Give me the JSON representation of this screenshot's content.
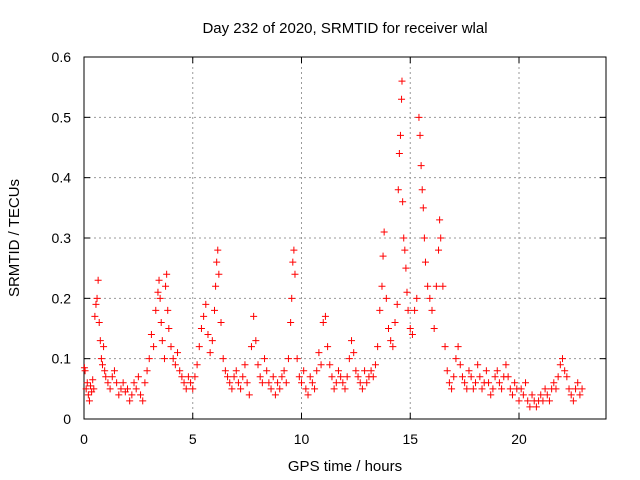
{
  "chart_data": {
    "type": "scatter",
    "title": "Day 232 of 2020, SRMTID for receiver wlal",
    "xlabel": "GPS time / hours",
    "ylabel": "SRMTID / TECUs",
    "xlim": [
      0,
      24
    ],
    "ylim": [
      0,
      0.6
    ],
    "xticks": [
      0,
      5,
      10,
      15,
      20
    ],
    "yticks": [
      0,
      0.1,
      0.2,
      0.3,
      0.4,
      0.5,
      0.6
    ],
    "xtick_labels": [
      "0",
      "5",
      "10",
      "15",
      "20"
    ],
    "ytick_labels": [
      "0",
      "0.1",
      "0.2",
      "0.3",
      "0.4",
      "0.5",
      "0.6"
    ],
    "grid": true,
    "marker": "+",
    "color": "#ff0000",
    "series": [
      {
        "name": "SRMTID",
        "points": [
          [
            0.02,
            0.085
          ],
          [
            0.05,
            0.08
          ],
          [
            0.1,
            0.05
          ],
          [
            0.15,
            0.06
          ],
          [
            0.2,
            0.04
          ],
          [
            0.25,
            0.03
          ],
          [
            0.3,
            0.055
          ],
          [
            0.35,
            0.045
          ],
          [
            0.4,
            0.065
          ],
          [
            0.45,
            0.05
          ],
          [
            0.5,
            0.17
          ],
          [
            0.55,
            0.19
          ],
          [
            0.6,
            0.2
          ],
          [
            0.65,
            0.23
          ],
          [
            0.7,
            0.16
          ],
          [
            0.75,
            0.13
          ],
          [
            0.8,
            0.1
          ],
          [
            0.85,
            0.09
          ],
          [
            0.9,
            0.12
          ],
          [
            0.95,
            0.08
          ],
          [
            1.0,
            0.07
          ],
          [
            1.1,
            0.06
          ],
          [
            1.2,
            0.05
          ],
          [
            1.3,
            0.07
          ],
          [
            1.4,
            0.08
          ],
          [
            1.5,
            0.06
          ],
          [
            1.6,
            0.04
          ],
          [
            1.7,
            0.05
          ],
          [
            1.8,
            0.06
          ],
          [
            1.9,
            0.045
          ],
          [
            2.0,
            0.05
          ],
          [
            2.1,
            0.03
          ],
          [
            2.2,
            0.04
          ],
          [
            2.3,
            0.06
          ],
          [
            2.4,
            0.05
          ],
          [
            2.5,
            0.07
          ],
          [
            2.6,
            0.04
          ],
          [
            2.7,
            0.03
          ],
          [
            2.8,
            0.06
          ],
          [
            2.9,
            0.08
          ],
          [
            3.0,
            0.1
          ],
          [
            3.1,
            0.14
          ],
          [
            3.2,
            0.12
          ],
          [
            3.3,
            0.18
          ],
          [
            3.4,
            0.21
          ],
          [
            3.45,
            0.23
          ],
          [
            3.5,
            0.2
          ],
          [
            3.55,
            0.16
          ],
          [
            3.6,
            0.13
          ],
          [
            3.7,
            0.1
          ],
          [
            3.75,
            0.22
          ],
          [
            3.8,
            0.24
          ],
          [
            3.85,
            0.18
          ],
          [
            3.9,
            0.15
          ],
          [
            4.0,
            0.12
          ],
          [
            4.1,
            0.1
          ],
          [
            4.2,
            0.09
          ],
          [
            4.3,
            0.11
          ],
          [
            4.4,
            0.08
          ],
          [
            4.5,
            0.07
          ],
          [
            4.6,
            0.06
          ],
          [
            4.7,
            0.05
          ],
          [
            4.8,
            0.07
          ],
          [
            4.9,
            0.06
          ],
          [
            5.0,
            0.05
          ],
          [
            5.1,
            0.07
          ],
          [
            5.2,
            0.09
          ],
          [
            5.3,
            0.12
          ],
          [
            5.4,
            0.15
          ],
          [
            5.5,
            0.17
          ],
          [
            5.6,
            0.19
          ],
          [
            5.7,
            0.14
          ],
          [
            5.8,
            0.11
          ],
          [
            5.9,
            0.13
          ],
          [
            6.0,
            0.18
          ],
          [
            6.05,
            0.22
          ],
          [
            6.1,
            0.26
          ],
          [
            6.15,
            0.28
          ],
          [
            6.2,
            0.24
          ],
          [
            6.3,
            0.16
          ],
          [
            6.4,
            0.1
          ],
          [
            6.5,
            0.08
          ],
          [
            6.6,
            0.07
          ],
          [
            6.7,
            0.06
          ],
          [
            6.8,
            0.05
          ],
          [
            6.9,
            0.07
          ],
          [
            7.0,
            0.08
          ],
          [
            7.1,
            0.06
          ],
          [
            7.2,
            0.05
          ],
          [
            7.3,
            0.07
          ],
          [
            7.4,
            0.09
          ],
          [
            7.5,
            0.06
          ],
          [
            7.6,
            0.04
          ],
          [
            7.7,
            0.12
          ],
          [
            7.8,
            0.17
          ],
          [
            7.9,
            0.13
          ],
          [
            8.0,
            0.09
          ],
          [
            8.1,
            0.07
          ],
          [
            8.2,
            0.06
          ],
          [
            8.3,
            0.1
          ],
          [
            8.4,
            0.08
          ],
          [
            8.5,
            0.06
          ],
          [
            8.6,
            0.05
          ],
          [
            8.7,
            0.07
          ],
          [
            8.8,
            0.04
          ],
          [
            8.9,
            0.06
          ],
          [
            9.0,
            0.05
          ],
          [
            9.1,
            0.07
          ],
          [
            9.2,
            0.08
          ],
          [
            9.3,
            0.06
          ],
          [
            9.4,
            0.1
          ],
          [
            9.5,
            0.16
          ],
          [
            9.55,
            0.2
          ],
          [
            9.6,
            0.26
          ],
          [
            9.65,
            0.28
          ],
          [
            9.7,
            0.24
          ],
          [
            9.8,
            0.1
          ],
          [
            9.9,
            0.07
          ],
          [
            10.0,
            0.06
          ],
          [
            10.1,
            0.08
          ],
          [
            10.2,
            0.05
          ],
          [
            10.3,
            0.04
          ],
          [
            10.4,
            0.07
          ],
          [
            10.5,
            0.06
          ],
          [
            10.6,
            0.05
          ],
          [
            10.7,
            0.08
          ],
          [
            10.8,
            0.11
          ],
          [
            10.9,
            0.09
          ],
          [
            11.0,
            0.16
          ],
          [
            11.1,
            0.17
          ],
          [
            11.2,
            0.12
          ],
          [
            11.3,
            0.09
          ],
          [
            11.4,
            0.07
          ],
          [
            11.5,
            0.05
          ],
          [
            11.6,
            0.06
          ],
          [
            11.7,
            0.08
          ],
          [
            11.8,
            0.07
          ],
          [
            11.9,
            0.06
          ],
          [
            12.0,
            0.05
          ],
          [
            12.1,
            0.07
          ],
          [
            12.2,
            0.1
          ],
          [
            12.3,
            0.13
          ],
          [
            12.4,
            0.11
          ],
          [
            12.5,
            0.08
          ],
          [
            12.6,
            0.07
          ],
          [
            12.7,
            0.06
          ],
          [
            12.8,
            0.05
          ],
          [
            12.9,
            0.08
          ],
          [
            13.0,
            0.06
          ],
          [
            13.1,
            0.07
          ],
          [
            13.2,
            0.08
          ],
          [
            13.3,
            0.07
          ],
          [
            13.4,
            0.09
          ],
          [
            13.5,
            0.12
          ],
          [
            13.6,
            0.18
          ],
          [
            13.7,
            0.22
          ],
          [
            13.75,
            0.27
          ],
          [
            13.8,
            0.31
          ],
          [
            13.9,
            0.2
          ],
          [
            14.0,
            0.15
          ],
          [
            14.1,
            0.13
          ],
          [
            14.2,
            0.12
          ],
          [
            14.3,
            0.16
          ],
          [
            14.4,
            0.19
          ],
          [
            14.45,
            0.38
          ],
          [
            14.5,
            0.44
          ],
          [
            14.55,
            0.47
          ],
          [
            14.6,
            0.53
          ],
          [
            14.62,
            0.56
          ],
          [
            14.65,
            0.36
          ],
          [
            14.7,
            0.3
          ],
          [
            14.75,
            0.28
          ],
          [
            14.8,
            0.25
          ],
          [
            14.85,
            0.21
          ],
          [
            14.9,
            0.18
          ],
          [
            15.0,
            0.15
          ],
          [
            15.1,
            0.14
          ],
          [
            15.2,
            0.18
          ],
          [
            15.3,
            0.2
          ],
          [
            15.4,
            0.5
          ],
          [
            15.45,
            0.47
          ],
          [
            15.5,
            0.42
          ],
          [
            15.55,
            0.38
          ],
          [
            15.6,
            0.35
          ],
          [
            15.65,
            0.3
          ],
          [
            15.7,
            0.26
          ],
          [
            15.8,
            0.22
          ],
          [
            15.9,
            0.2
          ],
          [
            16.0,
            0.18
          ],
          [
            16.1,
            0.15
          ],
          [
            16.2,
            0.22
          ],
          [
            16.3,
            0.28
          ],
          [
            16.35,
            0.33
          ],
          [
            16.4,
            0.3
          ],
          [
            16.5,
            0.22
          ],
          [
            16.6,
            0.12
          ],
          [
            16.7,
            0.08
          ],
          [
            16.8,
            0.06
          ],
          [
            16.9,
            0.05
          ],
          [
            17.0,
            0.07
          ],
          [
            17.1,
            0.1
          ],
          [
            17.2,
            0.12
          ],
          [
            17.3,
            0.09
          ],
          [
            17.4,
            0.07
          ],
          [
            17.5,
            0.06
          ],
          [
            17.6,
            0.05
          ],
          [
            17.7,
            0.08
          ],
          [
            17.8,
            0.07
          ],
          [
            17.9,
            0.05
          ],
          [
            18.0,
            0.06
          ],
          [
            18.1,
            0.09
          ],
          [
            18.2,
            0.07
          ],
          [
            18.3,
            0.05
          ],
          [
            18.4,
            0.06
          ],
          [
            18.5,
            0.08
          ],
          [
            18.6,
            0.06
          ],
          [
            18.7,
            0.04
          ],
          [
            18.8,
            0.05
          ],
          [
            18.9,
            0.07
          ],
          [
            19.0,
            0.08
          ],
          [
            19.1,
            0.06
          ],
          [
            19.2,
            0.05
          ],
          [
            19.3,
            0.07
          ],
          [
            19.4,
            0.09
          ],
          [
            19.5,
            0.07
          ],
          [
            19.6,
            0.05
          ],
          [
            19.7,
            0.04
          ],
          [
            19.8,
            0.06
          ],
          [
            19.9,
            0.05
          ],
          [
            20.0,
            0.03
          ],
          [
            20.1,
            0.05
          ],
          [
            20.2,
            0.04
          ],
          [
            20.3,
            0.06
          ],
          [
            20.4,
            0.03
          ],
          [
            20.5,
            0.02
          ],
          [
            20.6,
            0.04
          ],
          [
            20.7,
            0.03
          ],
          [
            20.8,
            0.02
          ],
          [
            20.9,
            0.03
          ],
          [
            21.0,
            0.04
          ],
          [
            21.1,
            0.03
          ],
          [
            21.2,
            0.05
          ],
          [
            21.3,
            0.04
          ],
          [
            21.4,
            0.03
          ],
          [
            21.5,
            0.05
          ],
          [
            21.6,
            0.06
          ],
          [
            21.7,
            0.05
          ],
          [
            21.8,
            0.07
          ],
          [
            21.9,
            0.09
          ],
          [
            22.0,
            0.1
          ],
          [
            22.1,
            0.08
          ],
          [
            22.2,
            0.07
          ],
          [
            22.3,
            0.05
          ],
          [
            22.4,
            0.04
          ],
          [
            22.5,
            0.03
          ],
          [
            22.6,
            0.05
          ],
          [
            22.7,
            0.06
          ],
          [
            22.8,
            0.04
          ],
          [
            22.9,
            0.05
          ]
        ]
      }
    ]
  }
}
